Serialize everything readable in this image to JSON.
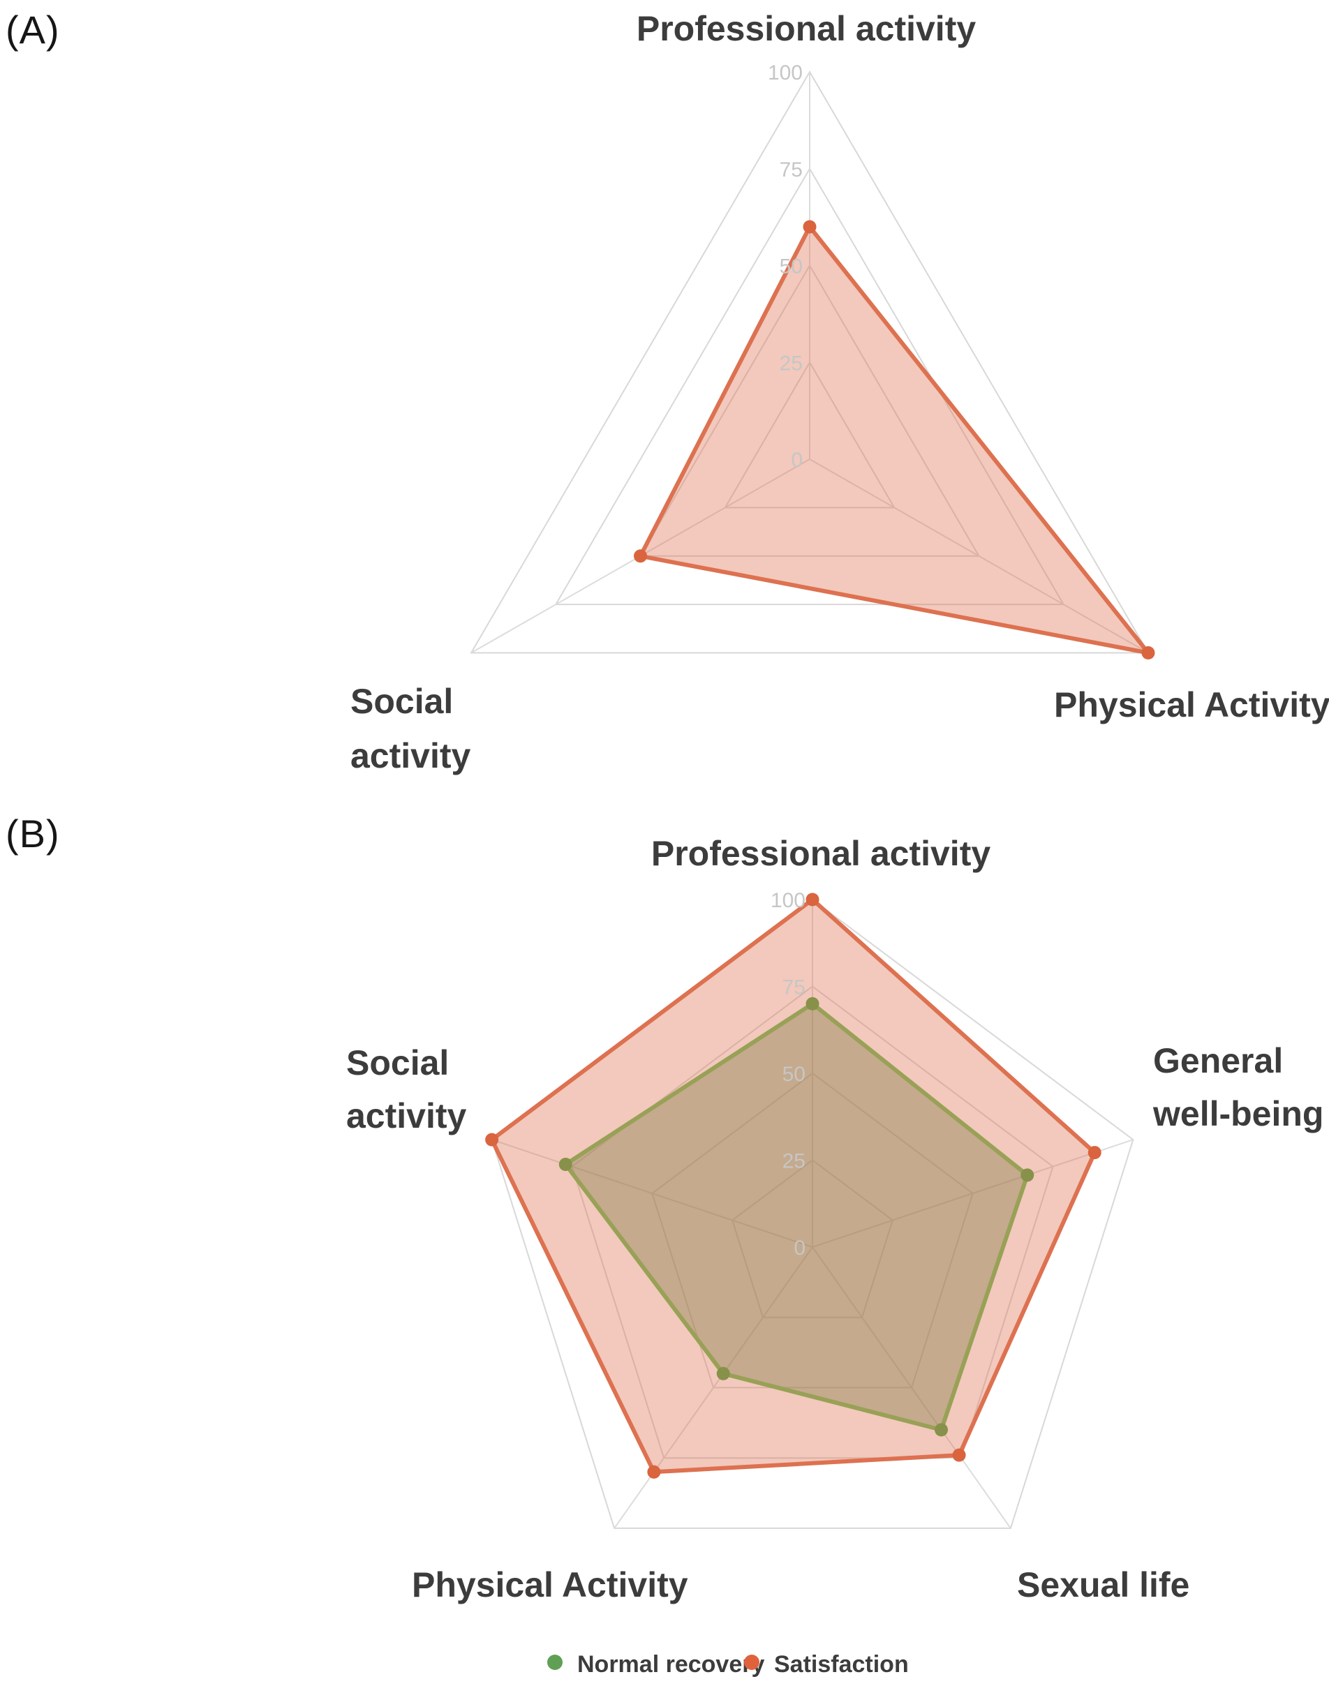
{
  "figure": {
    "panel_a_label": "(A)",
    "panel_b_label": "(B)"
  },
  "colors": {
    "page_bg": "#FFFFFF",
    "grid": "#D8D8D8",
    "spoke": "#DCDCDC",
    "tick_text": "#C6C6C6",
    "label_text": "#3C3C3C",
    "salmon_line": "#DD7150",
    "salmon_marker": "#D9643E",
    "green_line": "#98A156",
    "green_marker": "#87914A",
    "legend_green_marker": "#5FA055",
    "legend_orange_marker": "#E0623C"
  },
  "chart_data": [
    {
      "panel": "A",
      "type": "radar",
      "categories": [
        "Professional activity",
        "Physical Activity",
        "Social activity"
      ],
      "series": [
        {
          "name": "Satisfaction",
          "values": [
            60,
            100,
            50
          ],
          "color": "#DD7150",
          "marker_color": "#D9643E",
          "fill_color": "#DD7150",
          "fill_opacity": 0.38
        }
      ],
      "ticks": [
        100,
        75,
        50,
        25,
        0
      ],
      "rlim": [
        0,
        100
      ],
      "grid": true,
      "legend": []
    },
    {
      "panel": "B",
      "type": "radar",
      "categories": [
        "Professional activity",
        "General well-being",
        "Sexual life",
        "Physical Activity",
        "Social activity"
      ],
      "series": [
        {
          "name": "Satisfaction",
          "values": [
            100,
            88,
            74,
            80,
            100
          ],
          "color": "#DD7150",
          "marker_color": "#D9643E",
          "fill_color": "#DD7150",
          "fill_opacity": 0.38
        },
        {
          "name": "Normal recovery",
          "values": [
            70,
            67,
            65,
            45,
            77
          ],
          "color": "#98A156",
          "marker_color": "#87914A",
          "fill_color": "#827D46",
          "fill_opacity": 0.4
        }
      ],
      "ticks": [
        100,
        75,
        50,
        25,
        0
      ],
      "rlim": [
        0,
        100
      ],
      "grid": true,
      "legend": [
        {
          "label": "Normal recovery",
          "marker_color": "#5FA055"
        },
        {
          "label": "Satisfaction",
          "marker_color": "#E0623C"
        }
      ],
      "legend_position": "bottom"
    }
  ]
}
